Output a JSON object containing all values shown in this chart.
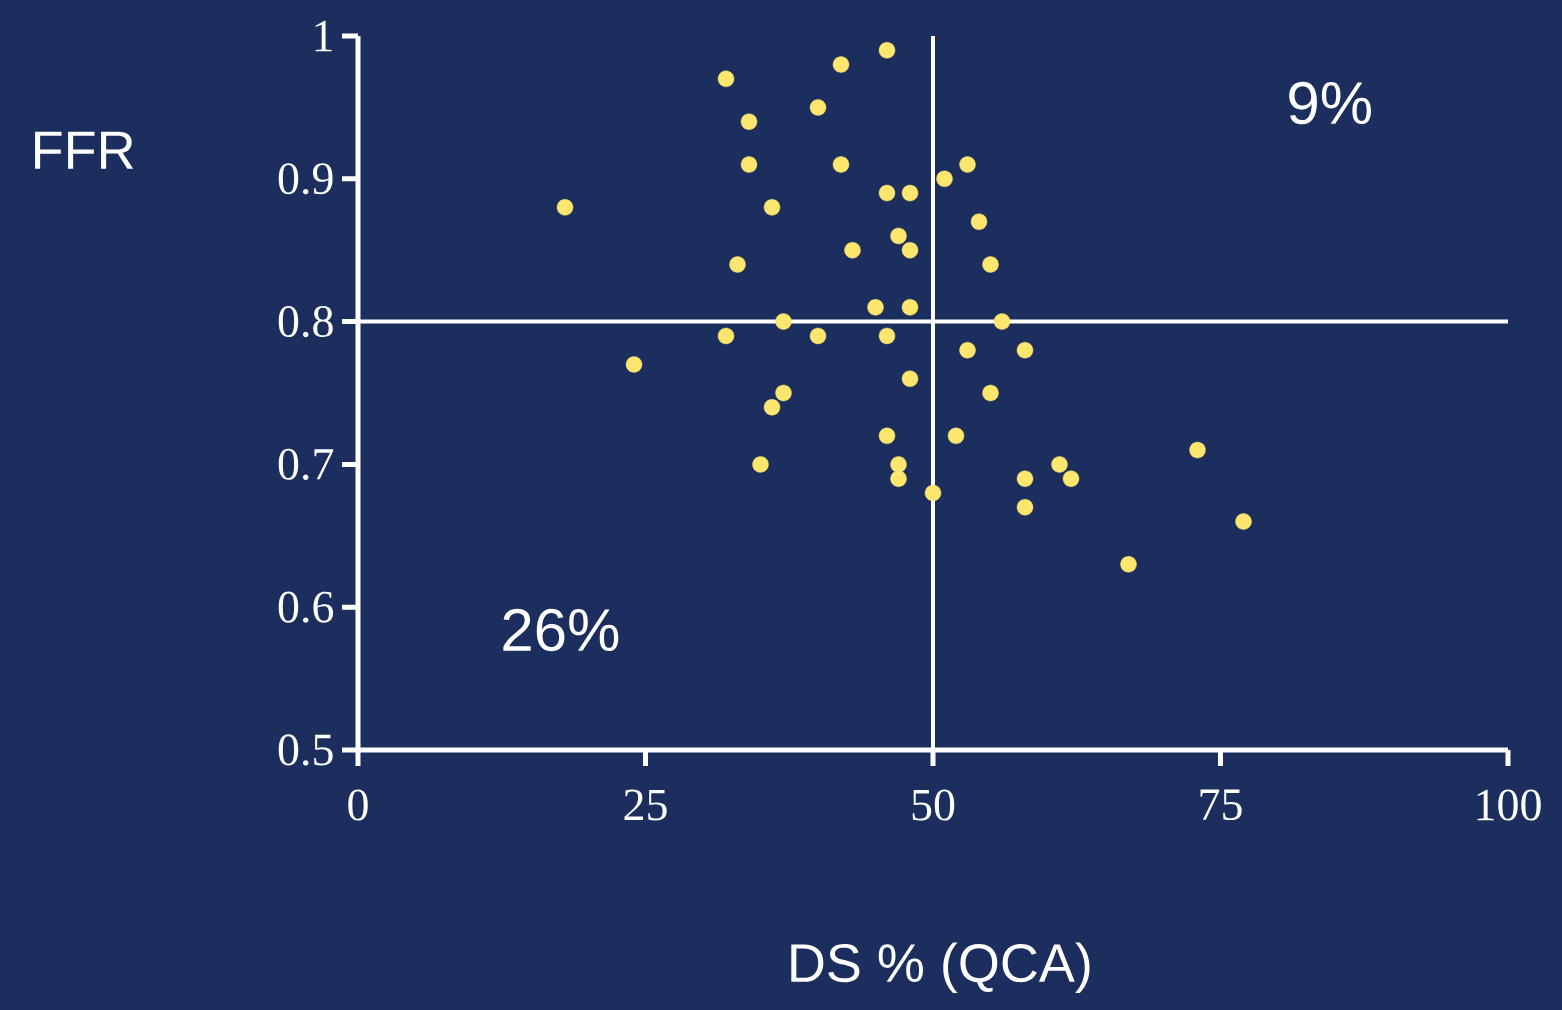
{
  "chart_data": {
    "type": "scatter",
    "xlabel": "DS % (QCA)",
    "ylabel": "FFR",
    "x": [
      18,
      24,
      32,
      34,
      34,
      33,
      36,
      32,
      37,
      40,
      42,
      42,
      43,
      40,
      37,
      36,
      35,
      46,
      46,
      48,
      47,
      48,
      45,
      48,
      46,
      48,
      46,
      47,
      47,
      50,
      51,
      53,
      54,
      55,
      56,
      53,
      58,
      55,
      52,
      58,
      58,
      61,
      62,
      67,
      73,
      77
    ],
    "values": [
      0.88,
      0.77,
      0.97,
      0.94,
      0.91,
      0.84,
      0.88,
      0.79,
      0.8,
      0.95,
      0.98,
      0.91,
      0.85,
      0.79,
      0.75,
      0.74,
      0.7,
      0.99,
      0.89,
      0.89,
      0.86,
      0.85,
      0.81,
      0.81,
      0.79,
      0.76,
      0.72,
      0.7,
      0.69,
      0.68,
      0.9,
      0.91,
      0.87,
      0.84,
      0.8,
      0.78,
      0.78,
      0.75,
      0.72,
      0.69,
      0.67,
      0.7,
      0.69,
      0.63,
      0.71,
      0.66
    ],
    "color": "#fde66e",
    "marker": "circle",
    "xlim": [
      0,
      100
    ],
    "ylim": [
      0.5,
      1
    ],
    "xticks": [
      0,
      25,
      50,
      75,
      100
    ],
    "yticks": [
      0.5,
      0.6,
      0.7,
      0.8,
      0.9,
      1
    ],
    "ref_lines": [
      {
        "axis": "x",
        "value": 50,
        "color": "#ffffff"
      },
      {
        "axis": "y",
        "value": 0.8,
        "color": "#ffffff"
      }
    ],
    "annotations": [
      "26%",
      "9%"
    ]
  }
}
